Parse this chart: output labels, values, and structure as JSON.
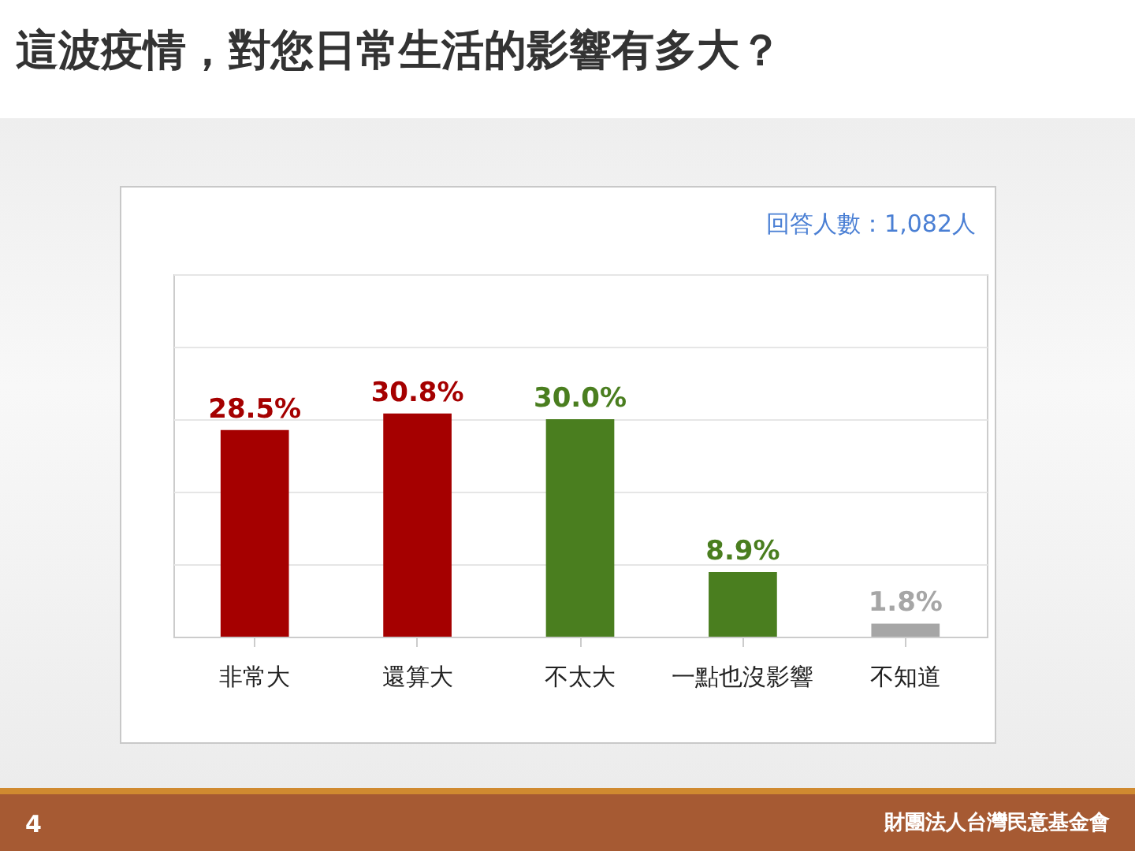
{
  "chart_data": {
    "type": "bar",
    "title": "這波疫情，對您日常生活的影響有多大？",
    "categories": [
      "非常大",
      "還算大",
      "不太大",
      "一點也沒影響",
      "不知道"
    ],
    "values": [
      28.5,
      30.8,
      30.0,
      8.9,
      1.8
    ],
    "value_labels": [
      "28.5%",
      "30.8%",
      "30.0%",
      "8.9%",
      "1.8%"
    ],
    "colors": [
      "#a50000",
      "#a50000",
      "#4a7e1f",
      "#4a7e1f",
      "#a6a6a6"
    ],
    "ylim": [
      0,
      50
    ],
    "yticks": [
      {
        "value": 0,
        "label": null
      },
      {
        "value": 10,
        "label": null
      },
      {
        "value": 20,
        "label": null
      },
      {
        "value": 30,
        "label": null
      },
      {
        "value": 40,
        "label": null
      },
      {
        "value": 50,
        "label": null
      }
    ],
    "grid": "y",
    "tick_labels": "x",
    "annotations": [
      "回答人數：1,082人",
      "財團法人台灣民意基金會",
      "4"
    ]
  }
}
